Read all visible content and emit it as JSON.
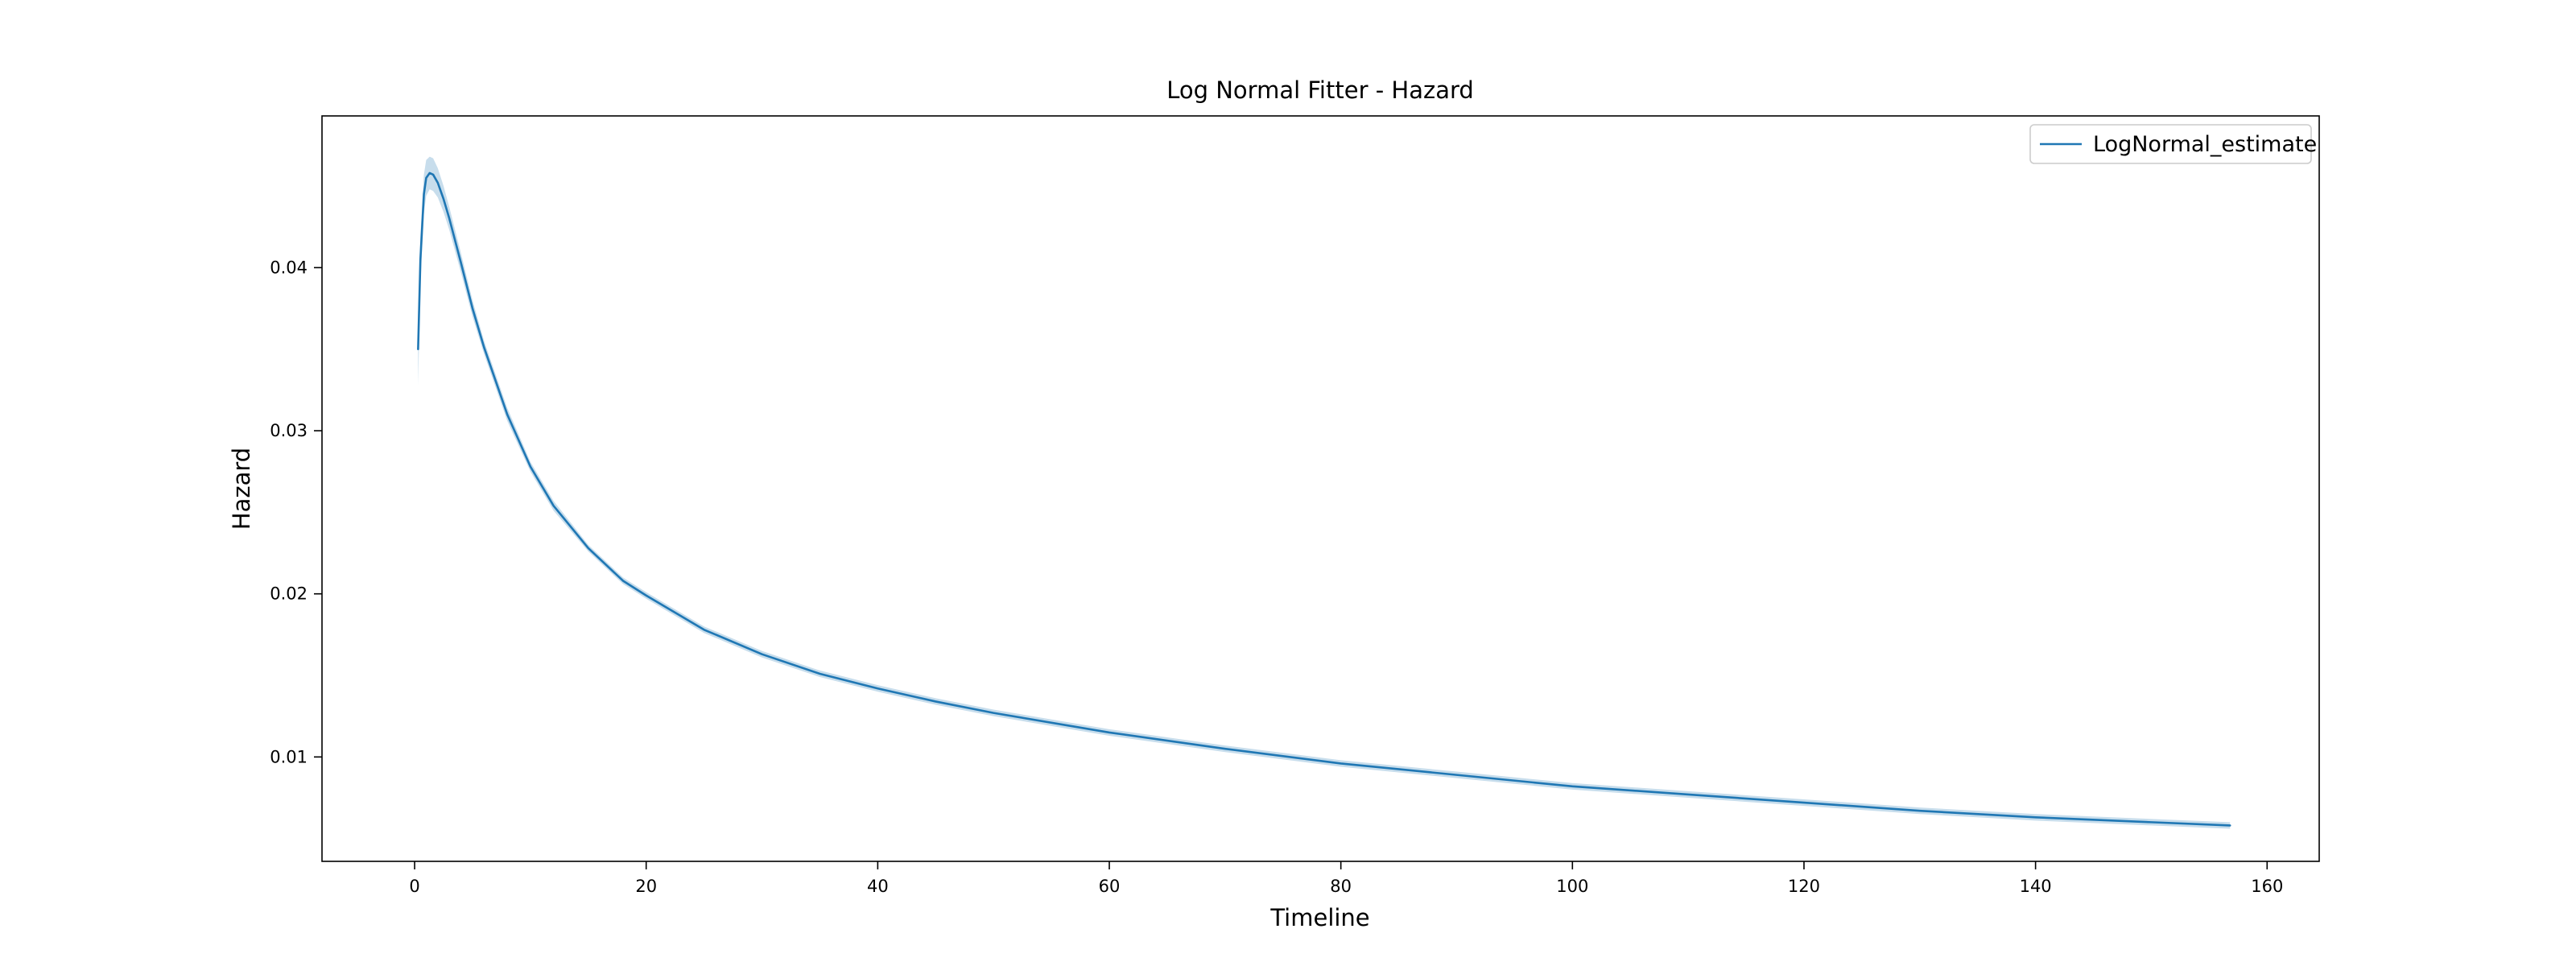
{
  "chart_data": {
    "type": "line",
    "title": "Log Normal Fitter - Hazard",
    "xlabel": "Timeline",
    "ylabel": "Hazard",
    "xlim": [
      -8,
      164.5
    ],
    "ylim": [
      0.0036,
      0.0493
    ],
    "xticks": [
      0,
      20,
      40,
      60,
      80,
      100,
      120,
      140,
      160
    ],
    "xtick_labels": [
      "0",
      "20",
      "40",
      "60",
      "80",
      "100",
      "120",
      "140",
      "160"
    ],
    "yticks": [
      0.01,
      0.02,
      0.03,
      0.04
    ],
    "ytick_labels": [
      "0.01",
      "0.02",
      "0.03",
      "0.04"
    ],
    "grid": false,
    "legend": {
      "placement": "top-right",
      "entries": [
        "LogNormal_estimate"
      ]
    },
    "colors": {
      "line": "#1f77b4",
      "band": "#1f77b4",
      "peak": "#1a3a5c"
    },
    "series": [
      {
        "name": "LogNormal_estimate",
        "x": [
          0.3,
          0.5,
          0.8,
          1.0,
          1.3,
          1.6,
          2.0,
          2.5,
          3.0,
          4.0,
          5.0,
          6.0,
          8.0,
          10.0,
          12.0,
          15.0,
          18.0,
          20.0,
          25.0,
          30.0,
          35.0,
          40.0,
          45.0,
          50.0,
          60.0,
          70.0,
          80.0,
          90.0,
          100.0,
          110.0,
          120.0,
          130.0,
          140.0,
          150.0,
          156.8
        ],
        "y": [
          0.035,
          0.0405,
          0.0445,
          0.0455,
          0.0458,
          0.0457,
          0.0452,
          0.0442,
          0.043,
          0.0403,
          0.0375,
          0.0351,
          0.031,
          0.0278,
          0.0254,
          0.0228,
          0.0208,
          0.0199,
          0.0178,
          0.0163,
          0.0151,
          0.0142,
          0.0134,
          0.0127,
          0.0115,
          0.0105,
          0.0096,
          0.0089,
          0.0082,
          0.0077,
          0.0072,
          0.0067,
          0.0063,
          0.006,
          0.0058
        ],
        "lower": [
          0.0328,
          0.039,
          0.0433,
          0.0444,
          0.0448,
          0.0447,
          0.0443,
          0.0434,
          0.0423,
          0.0397,
          0.037,
          0.0347,
          0.0306,
          0.0275,
          0.0251,
          0.0226,
          0.0206,
          0.0197,
          0.0176,
          0.0161,
          0.0149,
          0.014,
          0.0132,
          0.0125,
          0.0113,
          0.0103,
          0.0094,
          0.0087,
          0.008,
          0.0075,
          0.007,
          0.0065,
          0.0061,
          0.0058,
          0.0056
        ],
        "upper": [
          0.0372,
          0.042,
          0.0457,
          0.0466,
          0.0468,
          0.0467,
          0.0461,
          0.045,
          0.0437,
          0.0409,
          0.038,
          0.0355,
          0.0314,
          0.0281,
          0.0257,
          0.023,
          0.021,
          0.0201,
          0.018,
          0.0165,
          0.0153,
          0.0144,
          0.0136,
          0.0129,
          0.0117,
          0.0107,
          0.0098,
          0.0091,
          0.0084,
          0.0079,
          0.0074,
          0.0069,
          0.0065,
          0.0062,
          0.006
        ]
      }
    ]
  }
}
